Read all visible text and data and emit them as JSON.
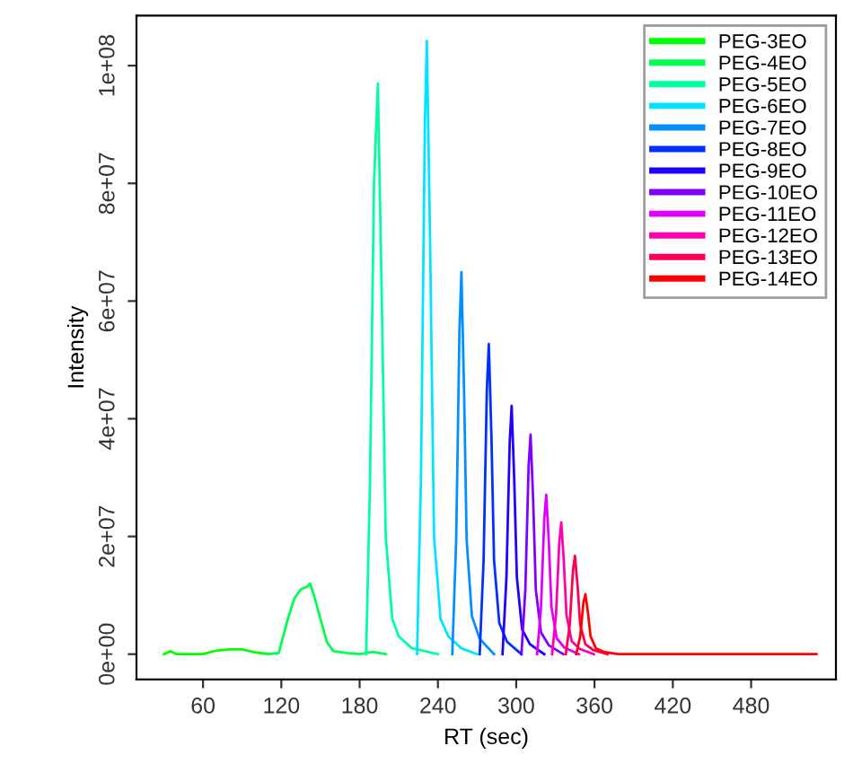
{
  "chart_data": {
    "type": "line",
    "xlabel": "RT (sec)",
    "ylabel": "Intensity",
    "xlim": [
      9,
      545
    ],
    "xticks": [
      60,
      120,
      180,
      240,
      300,
      360,
      420,
      480
    ],
    "ylim": [
      -4300000,
      108500000
    ],
    "yticks": [
      {
        "value": 0,
        "label": "0e+00"
      },
      {
        "value": 20000000,
        "label": "2e+07"
      },
      {
        "value": 40000000,
        "label": "4e+07"
      },
      {
        "value": 60000000,
        "label": "6e+07"
      },
      {
        "value": 80000000,
        "label": "8e+07"
      },
      {
        "value": 100000000,
        "label": "1e+08"
      }
    ],
    "legend": "top right",
    "series": [
      {
        "name": "PEG-3EO",
        "color": "#00ff00",
        "x": [
          30,
          35,
          40,
          60,
          70,
          80,
          90,
          100,
          110
        ],
        "values": [
          0,
          500000,
          0,
          0,
          600000,
          800000,
          800000,
          300000,
          0
        ]
      },
      {
        "name": "PEG-4EO",
        "color": "#00ff50",
        "x": [
          110,
          118,
          125,
          130,
          135,
          140,
          142,
          145,
          150,
          155,
          160,
          170,
          180,
          190,
          200
        ],
        "values": [
          0,
          200000,
          6000000,
          9500000,
          11000000,
          11500000,
          12000000,
          10000000,
          6000000,
          2000000,
          500000,
          200000,
          0,
          400000,
          0
        ]
      },
      {
        "name": "PEG-5EO",
        "color": "#00ffa0",
        "x": [
          185,
          188,
          191,
          194,
          197,
          200,
          205,
          210,
          220,
          230,
          240
        ],
        "values": [
          0,
          30000000,
          80000000,
          97000000,
          60000000,
          20000000,
          6000000,
          3000000,
          1000000,
          500000,
          0
        ]
      },
      {
        "name": "PEG-6EO",
        "color": "#00e5ff",
        "x": [
          224,
          227,
          230,
          231.5,
          234,
          237,
          242,
          248,
          258,
          270
        ],
        "values": [
          0,
          30000000,
          90000000,
          104200000,
          70000000,
          20000000,
          6000000,
          3000000,
          1000000,
          0
        ]
      },
      {
        "name": "PEG-7EO",
        "color": "#0090ff",
        "x": [
          251,
          254,
          256.5,
          258,
          260,
          262,
          266,
          272,
          283
        ],
        "values": [
          0,
          19500000,
          55000000,
          64900000,
          45000000,
          19500000,
          6500000,
          2600000,
          0
        ]
      },
      {
        "name": "PEG-8EO",
        "color": "#0030ff",
        "x": [
          272,
          275,
          277.5,
          279,
          281,
          283,
          287,
          293,
          304
        ],
        "values": [
          0,
          16000000,
          45000000,
          52700000,
          37000000,
          16000000,
          5300000,
          2100000,
          0
        ]
      },
      {
        "name": "PEG-9EO",
        "color": "#2000ff",
        "x": [
          289.5,
          292.5,
          295,
          296.5,
          298.5,
          300.5,
          304.5,
          310.5,
          321.5
        ],
        "values": [
          0,
          13000000,
          36000000,
          42200000,
          29500000,
          13000000,
          4200000,
          1700000,
          0
        ]
      },
      {
        "name": "PEG-10EO",
        "color": "#8000ff",
        "x": [
          304,
          307,
          309.5,
          311,
          313,
          315,
          319,
          325,
          336
        ],
        "values": [
          0,
          11000000,
          32000000,
          37300000,
          26000000,
          11000000,
          3700000,
          1500000,
          0
        ]
      },
      {
        "name": "PEG-11EO",
        "color": "#e000ff",
        "x": [
          316,
          319,
          321.5,
          323,
          325,
          327,
          331,
          337,
          348
        ],
        "values": [
          0,
          8000000,
          23000000,
          27100000,
          19000000,
          8000000,
          2700000,
          1100000,
          0
        ]
      },
      {
        "name": "PEG-12EO",
        "color": "#ff00b0",
        "x": [
          327.5,
          330.5,
          333,
          334.5,
          336.5,
          338.5,
          342.5,
          348.5,
          359.5
        ],
        "values": [
          0,
          6700000,
          19000000,
          22400000,
          15700000,
          6700000,
          2200000,
          900000,
          0
        ]
      },
      {
        "name": "PEG-13EO",
        "color": "#ff0050",
        "x": [
          338,
          341,
          343.5,
          345,
          347,
          349,
          353,
          359,
          370
        ],
        "values": [
          0,
          5000000,
          14200000,
          16700000,
          11700000,
          5000000,
          1700000,
          700000,
          0
        ]
      },
      {
        "name": "PEG-14EO",
        "color": "#ff0000",
        "x": [
          346,
          349,
          351.5,
          353,
          355,
          357,
          361,
          367,
          378,
          530
        ],
        "values": [
          0,
          3000000,
          8700000,
          10200000,
          7000000,
          3000000,
          1000000,
          400000,
          0,
          0
        ]
      }
    ]
  }
}
